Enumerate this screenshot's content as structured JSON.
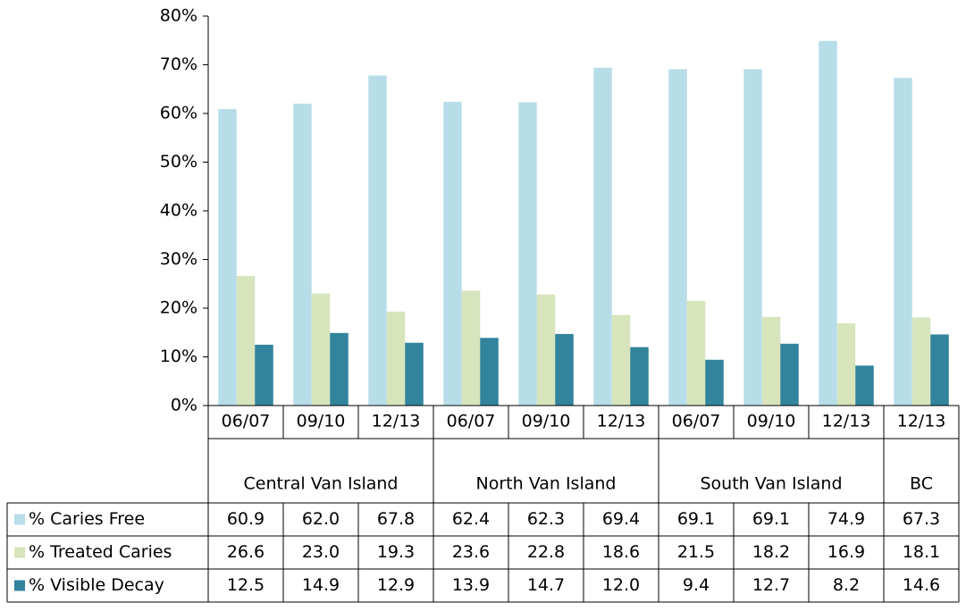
{
  "chart_data": {
    "type": "bar",
    "groups": [
      {
        "label": "Central Van Island",
        "categories": [
          "06/07",
          "09/10",
          "12/13"
        ]
      },
      {
        "label": "North Van Island",
        "categories": [
          "06/07",
          "09/10",
          "12/13"
        ]
      },
      {
        "label": "South Van Island",
        "categories": [
          "06/07",
          "09/10",
          "12/13"
        ]
      },
      {
        "label": "BC",
        "categories": [
          "12/13"
        ]
      }
    ],
    "series": [
      {
        "name": "% Caries Free",
        "color": "#b7dde8",
        "values": [
          60.9,
          62.0,
          67.8,
          62.4,
          62.3,
          69.4,
          69.1,
          69.1,
          74.9,
          67.3
        ],
        "value_labels": [
          "60.9",
          "62.0",
          "67.8",
          "62.4",
          "62.3",
          "69.4",
          "69.1",
          "69.1",
          "74.9",
          "67.3"
        ]
      },
      {
        "name": "% Treated Caries",
        "color": "#d7e4bc",
        "values": [
          26.6,
          23.0,
          19.3,
          23.6,
          22.8,
          18.6,
          21.5,
          18.2,
          16.9,
          18.1
        ],
        "value_labels": [
          "26.6",
          "23.0",
          "19.3",
          "23.6",
          "22.8",
          "18.6",
          "21.5",
          "18.2",
          "16.9",
          "18.1"
        ]
      },
      {
        "name": "% Visible Decay",
        "color": "#31849b",
        "values": [
          12.5,
          14.9,
          12.9,
          13.9,
          14.7,
          12.0,
          9.4,
          12.7,
          8.2,
          14.6
        ],
        "value_labels": [
          "12.5",
          "14.9",
          "12.9",
          "13.9",
          "14.7",
          "12.0",
          "9.4",
          "12.7",
          "8.2",
          "14.6"
        ]
      }
    ],
    "ylim": [
      0,
      80
    ],
    "yticks": [
      {
        "value": 0,
        "label": "0%"
      },
      {
        "value": 10,
        "label": "10%"
      },
      {
        "value": 20,
        "label": "20%"
      },
      {
        "value": 30,
        "label": "30%"
      },
      {
        "value": 40,
        "label": "40%"
      },
      {
        "value": 50,
        "label": "50%"
      },
      {
        "value": 60,
        "label": "60%"
      },
      {
        "value": 70,
        "label": "70%"
      },
      {
        "value": 80,
        "label": "80%"
      }
    ],
    "grid": false
  }
}
